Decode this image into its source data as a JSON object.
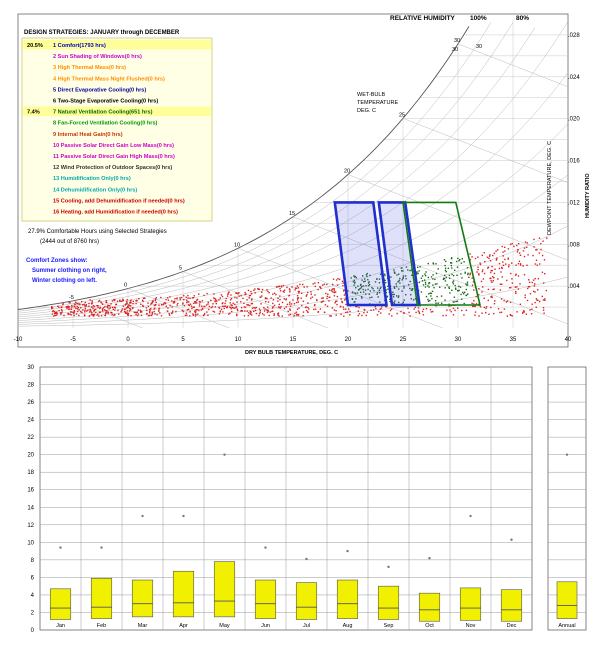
{
  "chart_data": [
    {
      "type": "scatter",
      "subtype": "psychrometric",
      "legend": {
        "title": "DESIGN STRATEGIES: JANUARY through DECEMBER",
        "items": [
          {
            "pct": "20.5%",
            "label": "1 Comfort(1793 hrs)",
            "color": "#0000cc",
            "highlight": true
          },
          {
            "pct": "",
            "label": "2 Sun Shading of Windows(0 hrs)",
            "color": "#cc00cc",
            "highlight": false
          },
          {
            "pct": "",
            "label": "3 High Thermal Mass(0 hrs)",
            "color": "#ff8c00",
            "highlight": false
          },
          {
            "pct": "",
            "label": "4 High Thermal Mass Night Flushed(0 hrs)",
            "color": "#ff8c00",
            "highlight": false
          },
          {
            "pct": "",
            "label": "5 Direct Evaporative Cooling(0 hrs)",
            "color": "#000099",
            "highlight": false
          },
          {
            "pct": "",
            "label": "6 Two-Stage Evaporative Cooling(0 hrs)",
            "color": "#000000",
            "highlight": false
          },
          {
            "pct": "7.4%",
            "label": "7 Natural Ventilation Cooling(651 hrs)",
            "color": "#006600",
            "highlight": true
          },
          {
            "pct": "",
            "label": "8 Fan-Forced Ventilation Cooling(0 hrs)",
            "color": "#009900",
            "highlight": false
          },
          {
            "pct": "",
            "label": "9 Internal Heat Gain(0 hrs)",
            "color": "#cc3300",
            "highlight": false
          },
          {
            "pct": "",
            "label": "10 Passive Solar Direct Gain Low Mass(0 hrs)",
            "color": "#cc00cc",
            "highlight": false
          },
          {
            "pct": "",
            "label": "11 Passive Solar Direct Gain High Mass(0 hrs)",
            "color": "#cc00cc",
            "highlight": false
          },
          {
            "pct": "",
            "label": "12 Wind Protection of Outdoor Spaces(0 hrs)",
            "color": "#333333",
            "highlight": false
          },
          {
            "pct": "",
            "label": "13 Humidification Only(0 hrs)",
            "color": "#00aaaa",
            "highlight": false
          },
          {
            "pct": "",
            "label": "14 Dehumidification Only(0 hrs)",
            "color": "#00aaaa",
            "highlight": false
          },
          {
            "pct": "",
            "label": "15 Cooling, add Dehumidification if needed(0 hrs)",
            "color": "#cc0000",
            "highlight": false
          },
          {
            "pct": "",
            "label": "16 Heating, add Humidification if needed(0 hrs)",
            "color": "#cc0000",
            "highlight": false
          }
        ]
      },
      "summary": [
        "27.9%   Comfortable Hours using Selected Strategies",
        "(2444 out of 8760 hrs)"
      ],
      "comfort_note": [
        "Comfort Zones show:",
        "Summer clothing on right,",
        "Winter clothing on left."
      ],
      "top_labels": {
        "relative_humidity": "RELATIVE HUMIDITY",
        "rh100": "100%",
        "rh80": "80%"
      },
      "wet_bulb_label": [
        "WET-BULB",
        "TEMPERATURE",
        "DEG. C"
      ],
      "right_axis_label": "DEWPOINT TEMPERATURE, DEG. C",
      "humidity_ratio_label": "HUMIDITY RATIO",
      "xlabel": "DRY BULB TEMPERATURE, DEG. C",
      "xlim": [
        -10,
        40
      ],
      "x_ticks": [
        "-10",
        "-5",
        "0",
        "5",
        "10",
        "15",
        "20",
        "25",
        "30",
        "35",
        "40"
      ],
      "ylim": [
        0,
        0.03
      ],
      "hr_ticks": [
        ".028",
        ".024",
        ".020",
        ".016",
        ".012",
        ".008",
        ".004"
      ],
      "wet_bulb_ticks": [
        "-5",
        "0",
        "5",
        "10",
        "15",
        "20",
        "25",
        "30"
      ],
      "upper_rh_ticks": [
        "30",
        "30"
      ],
      "comfort_zones": [
        {
          "name": "winter",
          "polygon": [
            [
              20,
              0.0022
            ],
            [
              23.5,
              0.0022
            ],
            [
              22.3,
              0.012
            ],
            [
              18.8,
              0.012
            ]
          ]
        },
        {
          "name": "summer",
          "polygon": [
            [
              24,
              0.0022
            ],
            [
              26.5,
              0.0022
            ],
            [
              25.2,
              0.012
            ],
            [
              22.8,
              0.012
            ]
          ]
        },
        {
          "name": "natural-ventilation",
          "polygon": [
            [
              26.3,
              0.0022
            ],
            [
              32,
              0.0022
            ],
            [
              29.8,
              0.012
            ],
            [
              25,
              0.012
            ]
          ]
        }
      ],
      "series": [
        {
          "name": "outside-comfort",
          "color": "#dd2222"
        },
        {
          "name": "comfort-hours",
          "color": "#1a6b1a"
        }
      ]
    },
    {
      "type": "box",
      "categories": [
        "Jan",
        "Feb",
        "Mar",
        "Apr",
        "May",
        "Jun",
        "Jul",
        "Aug",
        "Sep",
        "Oct",
        "Nov",
        "Dec"
      ],
      "y_ticks": [
        "0",
        "2",
        "4",
        "6",
        "8",
        "10",
        "12",
        "14",
        "16",
        "18",
        "20",
        "22",
        "24",
        "26",
        "28",
        "30"
      ],
      "ylim": [
        0,
        30
      ],
      "box_color": "#f0f000",
      "boxes": [
        {
          "label": "Jan",
          "q1": 1.2,
          "median": 2.5,
          "q3": 4.7,
          "max": 9.4
        },
        {
          "label": "Feb",
          "q1": 1.3,
          "median": 2.6,
          "q3": 5.9,
          "max": 9.4
        },
        {
          "label": "Mar",
          "q1": 1.5,
          "median": 3.0,
          "q3": 5.7,
          "max": 13.0
        },
        {
          "label": "Apr",
          "q1": 1.5,
          "median": 3.1,
          "q3": 6.7,
          "max": 13.0
        },
        {
          "label": "May",
          "q1": 1.5,
          "median": 3.3,
          "q3": 7.8,
          "max": 20.0
        },
        {
          "label": "Jun",
          "q1": 1.3,
          "median": 3.0,
          "q3": 5.7,
          "max": 9.4
        },
        {
          "label": "Jul",
          "q1": 1.2,
          "median": 2.6,
          "q3": 5.4,
          "max": 8.1
        },
        {
          "label": "Aug",
          "q1": 1.3,
          "median": 3.0,
          "q3": 5.7,
          "max": 9.0
        },
        {
          "label": "Sep",
          "q1": 1.2,
          "median": 2.5,
          "q3": 5.0,
          "max": 7.2
        },
        {
          "label": "Oct",
          "q1": 1.0,
          "median": 2.3,
          "q3": 4.2,
          "max": 8.2
        },
        {
          "label": "Nov",
          "q1": 1.1,
          "median": 2.5,
          "q3": 4.8,
          "max": 13.0
        },
        {
          "label": "Dec",
          "q1": 1.0,
          "median": 2.3,
          "q3": 4.6,
          "max": 10.3
        }
      ]
    },
    {
      "type": "box",
      "categories": [
        "Annual"
      ],
      "ylim": [
        0,
        30
      ],
      "boxes": [
        {
          "label": "Annual",
          "q1": 1.3,
          "median": 2.8,
          "q3": 5.5,
          "max": 20.0
        }
      ]
    }
  ]
}
